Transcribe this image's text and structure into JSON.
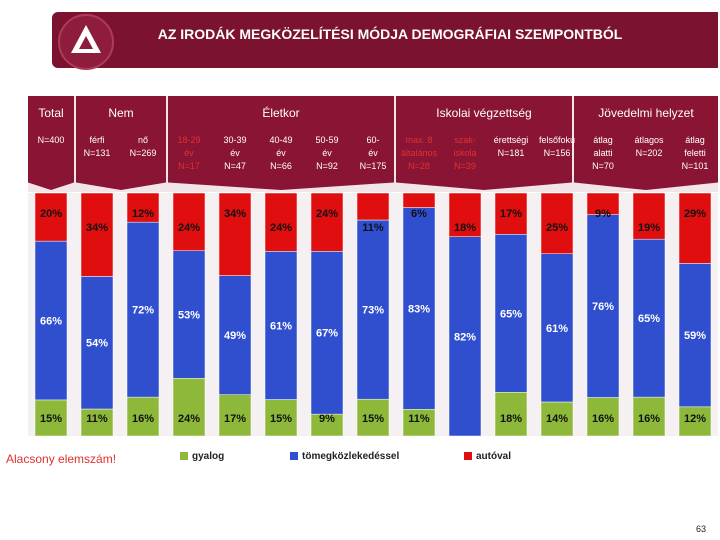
{
  "title": "AZ IRODÁK MEGKÖZELÍTÉSI MÓDJA DEMOGRÁFIAI SZEMPONTBÓL",
  "groups": {
    "total": "Total",
    "nem": "Nem",
    "eletkor": "Életkor",
    "iskolai": "Iskolai végzettség",
    "jovedelmi": "Jövedelmi helyzet"
  },
  "note": "Alacsony elemszám!",
  "page_number": "63",
  "colors": {
    "gyalog": "#8db83a",
    "tomeg": "#2f4fcf",
    "auto": "#e00e0e",
    "banner": "#7a1230",
    "tab": "#8a1434"
  },
  "chart_data": {
    "type": "bar",
    "stacked": true,
    "orientation": "vertical",
    "categories": [
      {
        "label": "N=400",
        "style": "white"
      },
      {
        "label": "férfi\nN=131",
        "style": "white"
      },
      {
        "label": "nő\nN=269",
        "style": "white"
      },
      {
        "label": "18-29\név\nN=17",
        "style": "red"
      },
      {
        "label": "30-39\név\nN=47",
        "style": "white"
      },
      {
        "label": "40-49\név\nN=66",
        "style": "white"
      },
      {
        "label": "50-59\név\nN=92",
        "style": "white"
      },
      {
        "label": "60-\név\nN=175",
        "style": "white"
      },
      {
        "label": "max. 8\náltalános\nN=28",
        "style": "red"
      },
      {
        "label": "szak-\niskola\nN=39",
        "style": "red"
      },
      {
        "label": "érettségi\nN=181",
        "style": "white"
      },
      {
        "label": "felsőfokú\nN=156",
        "style": "white"
      },
      {
        "label": "átlag\nalatti\nN=70",
        "style": "white"
      },
      {
        "label": "átlagos\nN=202",
        "style": "white"
      },
      {
        "label": "átlag\nfeletti\nN=101",
        "style": "white"
      }
    ],
    "series": [
      {
        "name": "gyalog",
        "values": [
          15,
          11,
          16,
          24,
          17,
          15,
          9,
          15,
          11,
          0,
          18,
          14,
          16,
          16,
          12
        ]
      },
      {
        "name": "tömegközlekedéssel",
        "values": [
          66,
          54,
          72,
          53,
          49,
          61,
          67,
          73,
          83,
          82,
          65,
          61,
          76,
          65,
          59
        ]
      },
      {
        "name": "autóval",
        "values": [
          20,
          34,
          12,
          24,
          34,
          24,
          24,
          11,
          6,
          18,
          17,
          25,
          9,
          19,
          29
        ]
      }
    ],
    "labels": {
      "gyalog": [
        "15%",
        "11%",
        "16%",
        "24%",
        "17%",
        "15%",
        "9%",
        "15%",
        "11%",
        "",
        "18%",
        "14%",
        "16%",
        "16%",
        "12%"
      ],
      "tömegközlekedéssel": [
        "66%",
        "54%",
        "72%",
        "53%",
        "49%",
        "61%",
        "67%",
        "73%",
        "83%",
        "82%",
        "65%",
        "61%",
        "76%",
        "65%",
        "59%"
      ],
      "autóval": [
        "20%",
        "34%",
        "12%",
        "24%",
        "34%",
        "24%",
        "24%",
        "11%",
        "6%",
        "18%",
        "17%",
        "25%",
        "9%",
        "19%",
        "29%"
      ]
    },
    "ylim": [
      0,
      100
    ],
    "legend": [
      "gyalog",
      "tömegközlekedéssel",
      "autóval"
    ],
    "legend_position": "bottom"
  }
}
